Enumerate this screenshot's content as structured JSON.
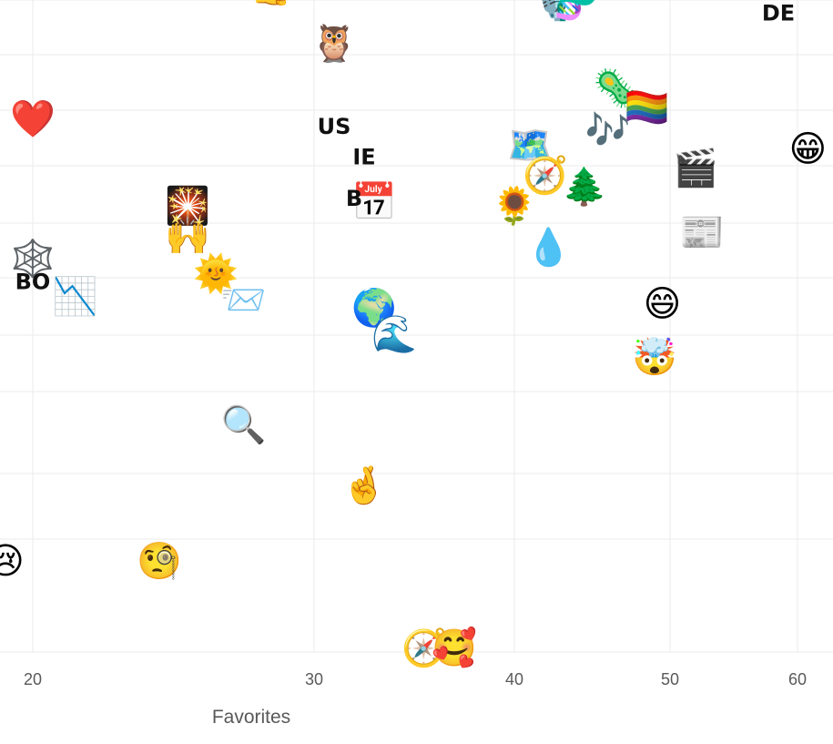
{
  "chart_data": {
    "type": "scatter",
    "title": "",
    "xlabel": "Favorites",
    "ylabel": "",
    "x_ticks": [
      20,
      30,
      40,
      50,
      60
    ],
    "grid": true,
    "series": [
      {
        "points": [
          {
            "x": 29.5,
            "y": 8.6,
            "label": "😲"
          },
          {
            "x": 28.7,
            "y": 8.25,
            "label": "🎯"
          },
          {
            "x": 31.5,
            "y": 8.35,
            "label": "👇"
          },
          {
            "x": 40.0,
            "y": 8.3,
            "label": "🦾"
          },
          {
            "x": 40.0,
            "y": 8.1,
            "label": "🧠"
          },
          {
            "x": 43.8,
            "y": 8.1,
            "label": "👇"
          },
          {
            "x": 21.5,
            "y": 7.8,
            "label": "👉"
          },
          {
            "x": 22.5,
            "y": 8.0,
            "label": "💼"
          },
          {
            "x": 23.5,
            "y": 7.8,
            "label": "🌐"
          },
          {
            "x": 22.0,
            "y": 7.5,
            "label": "📌"
          },
          {
            "x": 29.0,
            "y": 7.7,
            "label": "☑️"
          },
          {
            "x": 31.0,
            "y": 7.7,
            "label": "💥"
          },
          {
            "x": 31.5,
            "y": 7.5,
            "label": "💰"
          },
          {
            "x": 42.0,
            "y": 7.7,
            "label": "🚁"
          },
          {
            "x": 26.0,
            "y": 7.4,
            "label": "🧑‍💻"
          },
          {
            "x": 27.0,
            "y": 7.05,
            "label": "💯"
          },
          {
            "x": 28.5,
            "y": 6.8,
            "label": "👍"
          },
          {
            "x": 56.5,
            "y": 7.3,
            "label": "😅"
          },
          {
            "x": 47.0,
            "y": 6.9,
            "label": "⬇️"
          },
          {
            "x": 42.5,
            "y": 6.6,
            "label": "🎙️"
          },
          {
            "x": 44.0,
            "y": 6.6,
            "label": "🧬"
          },
          {
            "x": 58.5,
            "y": 6.45,
            "label": "DE"
          },
          {
            "x": 31.0,
            "y": 6.05,
            "label": "🦉"
          },
          {
            "x": 46.5,
            "y": 5.45,
            "label": "🦠"
          },
          {
            "x": 48.5,
            "y": 5.2,
            "label": "🏳️‍🌈"
          },
          {
            "x": 46.0,
            "y": 4.9,
            "label": "🎶"
          },
          {
            "x": 41.0,
            "y": 4.7,
            "label": "🗺️"
          },
          {
            "x": 42.0,
            "y": 4.3,
            "label": "🧭"
          },
          {
            "x": 44.5,
            "y": 4.15,
            "label": "🌲"
          },
          {
            "x": 20.0,
            "y": 5.05,
            "label": "❤️"
          },
          {
            "x": 31.0,
            "y": 4.95,
            "label": "US"
          },
          {
            "x": 32.5,
            "y": 4.55,
            "label": "IE"
          },
          {
            "x": 33.0,
            "y": 3.95,
            "label": "📅"
          },
          {
            "x": 32.0,
            "y": 4.0,
            "label": "B"
          },
          {
            "x": 40.0,
            "y": 3.9,
            "label": "🌻"
          },
          {
            "x": 42.2,
            "y": 3.35,
            "label": "💧"
          },
          {
            "x": 52.0,
            "y": 4.4,
            "label": "🎬"
          },
          {
            "x": 61.0,
            "y": 4.65,
            "label": "😁"
          },
          {
            "x": 52.5,
            "y": 3.55,
            "label": "📰"
          },
          {
            "x": 25.5,
            "y": 3.9,
            "label": "🎇"
          },
          {
            "x": 25.5,
            "y": 3.5,
            "label": "🙌"
          },
          {
            "x": 26.5,
            "y": 3.0,
            "label": "🌞"
          },
          {
            "x": 27.5,
            "y": 2.65,
            "label": "📨"
          },
          {
            "x": 20.0,
            "y": 3.2,
            "label": "🕸️"
          },
          {
            "x": 20.0,
            "y": 2.9,
            "label": "BO"
          },
          {
            "x": 21.5,
            "y": 2.7,
            "label": "📉"
          },
          {
            "x": 33.0,
            "y": 2.55,
            "label": "🌍"
          },
          {
            "x": 34.0,
            "y": 2.2,
            "label": "🌊"
          },
          {
            "x": 49.5,
            "y": 2.6,
            "label": "😄"
          },
          {
            "x": 49.0,
            "y": 1.9,
            "label": "🤯"
          },
          {
            "x": 27.5,
            "y": 1.0,
            "label": "🔍"
          },
          {
            "x": 32.5,
            "y": 0.2,
            "label": "🤞"
          },
          {
            "x": 19.0,
            "y": -0.8,
            "label": "😢"
          },
          {
            "x": 24.5,
            "y": -0.8,
            "label": "🧐"
          },
          {
            "x": 35.5,
            "y": -1.95,
            "label": "🧭"
          },
          {
            "x": 37.0,
            "y": -1.95,
            "label": "🥰"
          }
        ]
      }
    ]
  }
}
